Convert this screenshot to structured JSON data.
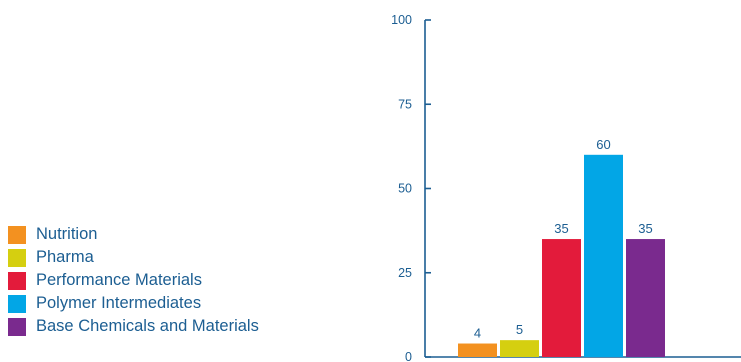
{
  "chart_data": {
    "type": "bar",
    "categories": [
      "Nutrition",
      "Pharma",
      "Performance Materials",
      "Polymer Intermediates",
      "Base Chemicals and Materials"
    ],
    "values": [
      4,
      5,
      35,
      60,
      35
    ],
    "colors": [
      "#f39120",
      "#d5cf10",
      "#e31b3b",
      "#02a6e6",
      "#7a2a8e"
    ],
    "ylim": [
      0,
      100
    ],
    "yticks": [
      0,
      25,
      50,
      75,
      100
    ],
    "ytick_labels": [
      "0",
      "25",
      "50",
      "75",
      "100"
    ],
    "data_labels": [
      "4",
      "5",
      "35",
      "60",
      "35"
    ],
    "axis_color": "#1c5e92",
    "legend_position": "left",
    "grid": false
  }
}
